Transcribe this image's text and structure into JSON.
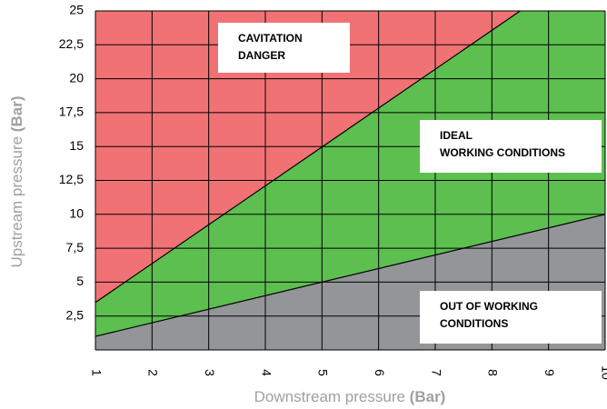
{
  "chart_data": {
    "type": "region",
    "xlabel": {
      "text": "Downstream pressure",
      "unit": "(Bar)"
    },
    "ylabel": {
      "text": "Upstream pressure",
      "unit": "(Bar)"
    },
    "xlim": [
      1,
      10
    ],
    "ylim": [
      0,
      25
    ],
    "xticks": [
      1,
      2,
      3,
      4,
      5,
      6,
      7,
      8,
      9,
      10
    ],
    "yticks": [
      {
        "value": 2.5,
        "label": "2,5"
      },
      5,
      {
        "value": 7.5,
        "label": "7,5"
      },
      10,
      {
        "value": 12.5,
        "label": "12,5"
      },
      15,
      {
        "value": 17.5,
        "label": "17,5"
      },
      20,
      {
        "value": 22.5,
        "label": "22,5"
      },
      25
    ],
    "grid": true,
    "series": [
      {
        "x": [
          1,
          8.5
        ],
        "y": [
          3.5,
          25
        ]
      },
      {
        "x": [
          1,
          10
        ],
        "y": [
          1,
          10
        ]
      }
    ],
    "regions": [
      {
        "lines": [
          "CAVITATION",
          "DANGER"
        ],
        "color": "#f07274"
      },
      {
        "lines": [
          "IDEAL",
          "WORKING CONDITIONS"
        ],
        "color": "#5cbf4f"
      },
      {
        "lines": [
          "OUT OF WORKING",
          "CONDITIONS"
        ],
        "color": "#939598"
      }
    ]
  }
}
